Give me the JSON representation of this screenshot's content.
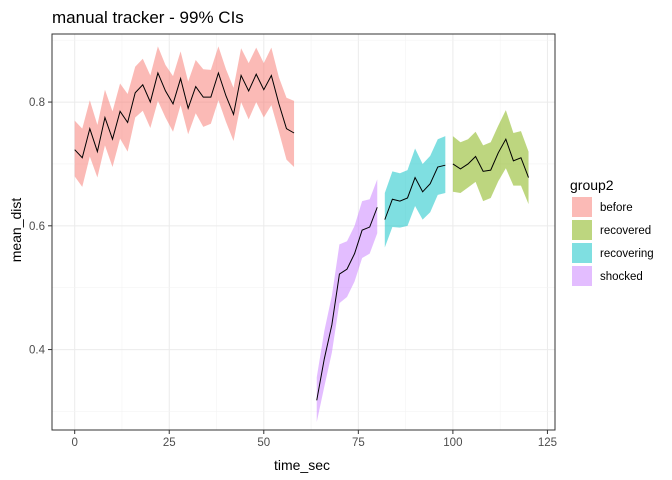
{
  "chart_data": {
    "type": "line",
    "title": "manual tracker - 99% CIs",
    "xlabel": "time_sec",
    "ylabel": "mean_dist",
    "xlim": [
      -6,
      127
    ],
    "ylim": [
      0.27,
      0.91
    ],
    "x_ticks": [
      0,
      25,
      50,
      75,
      100,
      125
    ],
    "y_ticks": [
      0.4,
      0.6,
      0.8
    ],
    "y_tick_labels": [
      "0.4",
      "0.6",
      "0.8"
    ],
    "grid": true,
    "legend": {
      "title": "group2",
      "position": "right",
      "entries": [
        "before",
        "recovered",
        "recovering",
        "shocked"
      ]
    },
    "series": [
      {
        "name": "before",
        "color": "#F8766D",
        "x": [
          0,
          2,
          4,
          6,
          8,
          10,
          12,
          14,
          16,
          18,
          20,
          22,
          24,
          26,
          28,
          30,
          32,
          34,
          36,
          38,
          40,
          42,
          44,
          46,
          48,
          50,
          52,
          54,
          56,
          58
        ],
        "mean": [
          0.723,
          0.71,
          0.757,
          0.72,
          0.775,
          0.74,
          0.785,
          0.767,
          0.815,
          0.828,
          0.8,
          0.847,
          0.818,
          0.797,
          0.838,
          0.79,
          0.825,
          0.808,
          0.808,
          0.847,
          0.81,
          0.78,
          0.843,
          0.818,
          0.845,
          0.82,
          0.843,
          0.797,
          0.757,
          0.75
        ],
        "lower": [
          0.68,
          0.663,
          0.712,
          0.678,
          0.73,
          0.695,
          0.741,
          0.72,
          0.775,
          0.786,
          0.758,
          0.802,
          0.775,
          0.752,
          0.795,
          0.748,
          0.782,
          0.76,
          0.765,
          0.803,
          0.768,
          0.737,
          0.8,
          0.772,
          0.8,
          0.775,
          0.795,
          0.752,
          0.707,
          0.695
        ],
        "upper": [
          0.77,
          0.757,
          0.803,
          0.763,
          0.82,
          0.785,
          0.83,
          0.813,
          0.857,
          0.87,
          0.843,
          0.89,
          0.86,
          0.842,
          0.882,
          0.833,
          0.868,
          0.853,
          0.852,
          0.89,
          0.853,
          0.823,
          0.887,
          0.863,
          0.888,
          0.863,
          0.888,
          0.84,
          0.807,
          0.802
        ]
      },
      {
        "name": "recovered",
        "color": "#7CAE00",
        "x": [
          100,
          102,
          104,
          106,
          108,
          110,
          112,
          114,
          116,
          118,
          120
        ],
        "mean": [
          0.7,
          0.692,
          0.7,
          0.712,
          0.688,
          0.69,
          0.718,
          0.74,
          0.705,
          0.71,
          0.678
        ],
        "lower": [
          0.655,
          0.653,
          0.662,
          0.671,
          0.64,
          0.645,
          0.672,
          0.693,
          0.665,
          0.665,
          0.635
        ],
        "upper": [
          0.745,
          0.735,
          0.74,
          0.752,
          0.73,
          0.735,
          0.762,
          0.787,
          0.75,
          0.753,
          0.72
        ]
      },
      {
        "name": "recovering",
        "color": "#00BFC4",
        "x": [
          82,
          84,
          86,
          88,
          90,
          92,
          94,
          96,
          98
        ],
        "mean": [
          0.61,
          0.643,
          0.64,
          0.645,
          0.678,
          0.655,
          0.668,
          0.695,
          0.698
        ],
        "lower": [
          0.565,
          0.598,
          0.597,
          0.6,
          0.632,
          0.61,
          0.622,
          0.65,
          0.653
        ],
        "upper": [
          0.653,
          0.688,
          0.685,
          0.69,
          0.725,
          0.7,
          0.713,
          0.74,
          0.745
        ]
      },
      {
        "name": "shocked",
        "color": "#C77CFF",
        "x": [
          64,
          66,
          68,
          70,
          72,
          74,
          76,
          78,
          80
        ],
        "mean": [
          0.318,
          0.385,
          0.44,
          0.522,
          0.53,
          0.555,
          0.593,
          0.598,
          0.63
        ],
        "lower": [
          0.283,
          0.34,
          0.395,
          0.475,
          0.485,
          0.51,
          0.548,
          0.555,
          0.588
        ],
        "upper": [
          0.355,
          0.43,
          0.487,
          0.57,
          0.575,
          0.6,
          0.64,
          0.643,
          0.675
        ]
      }
    ]
  }
}
